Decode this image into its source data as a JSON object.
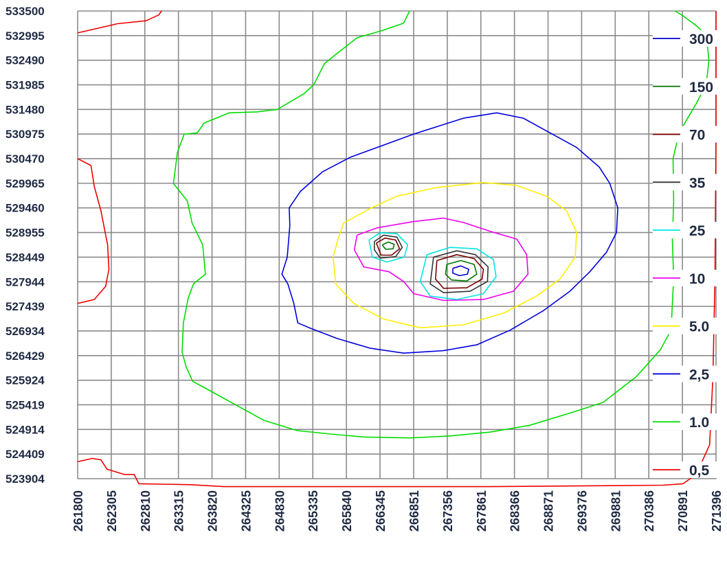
{
  "chart_data": {
    "type": "contour",
    "title": "",
    "xlabel": "",
    "ylabel": "",
    "grid": true,
    "legend_placement": "right-inside",
    "xlim": [
      261800,
      271396
    ],
    "ylim": [
      523904,
      533500
    ],
    "x_ticks": [
      "261800",
      "262305",
      "262810",
      "263315",
      "263820",
      "264325",
      "264830",
      "265335",
      "265840",
      "266345",
      "266851",
      "267356",
      "267861",
      "268366",
      "268871",
      "269376",
      "269881",
      "270386",
      "270891",
      "271396"
    ],
    "y_ticks": [
      "533500",
      "532995",
      "532490",
      "531985",
      "531480",
      "530975",
      "530470",
      "529965",
      "529460",
      "528955",
      "528449",
      "527944",
      "527439",
      "526934",
      "526429",
      "525924",
      "525419",
      "524914",
      "524409",
      "523904"
    ],
    "levels": [
      {
        "label": "300",
        "color": "#0000cc"
      },
      {
        "label": "150",
        "color": "#007700"
      },
      {
        "label": "70",
        "color": "#770000"
      },
      {
        "label": "35",
        "color": "#333333"
      },
      {
        "label": "25",
        "color": "#00e5e5"
      },
      {
        "label": "10",
        "color": "#ee00ee"
      },
      {
        "label": "5.0",
        "color": "#ffee00"
      },
      {
        "label": "2,5",
        "color": "#0000dd"
      },
      {
        "label": "1.0",
        "color": "#00dd00"
      },
      {
        "label": "0,5",
        "color": "#ee0000"
      }
    ],
    "contours": [
      {
        "level": "0,5",
        "points": [
          [
            261800,
            533050
          ],
          [
            262400,
            533240
          ],
          [
            262830,
            533300
          ],
          [
            263020,
            533420
          ],
          [
            263060,
            533500
          ]
        ]
      },
      {
        "level": "0,5",
        "points": [
          [
            261800,
            530470
          ],
          [
            262000,
            530330
          ],
          [
            262050,
            529900
          ],
          [
            262150,
            529400
          ],
          [
            262250,
            528700
          ],
          [
            262270,
            528200
          ],
          [
            262220,
            527850
          ],
          [
            262050,
            527580
          ],
          [
            261800,
            527500
          ]
        ]
      },
      {
        "level": "0,5",
        "points": [
          [
            261800,
            524250
          ],
          [
            262020,
            524320
          ],
          [
            262150,
            524290
          ],
          [
            262240,
            524100
          ],
          [
            262500,
            523990
          ],
          [
            262650,
            523990
          ],
          [
            262720,
            523800
          ],
          [
            263500,
            523780
          ],
          [
            264000,
            523740
          ],
          [
            268000,
            523740
          ],
          [
            269800,
            523760
          ],
          [
            270600,
            523770
          ],
          [
            270900,
            523800
          ],
          [
            271100,
            523990
          ],
          [
            271300,
            524600
          ],
          [
            271350,
            526000
          ],
          [
            271380,
            528000
          ],
          [
            271396,
            531000
          ],
          [
            271396,
            533500
          ]
        ]
      },
      {
        "level": "1.0",
        "points": [
          [
            266790,
            533500
          ],
          [
            266700,
            533250
          ],
          [
            266380,
            533100
          ],
          [
            266000,
            532950
          ],
          [
            265720,
            532650
          ],
          [
            265510,
            532420
          ],
          [
            265350,
            531990
          ],
          [
            265200,
            531800
          ],
          [
            264800,
            531480
          ],
          [
            264500,
            531430
          ],
          [
            264080,
            531410
          ],
          [
            263700,
            531200
          ],
          [
            263600,
            531000
          ],
          [
            263400,
            530970
          ],
          [
            263300,
            530600
          ],
          [
            263240,
            529960
          ],
          [
            263450,
            529600
          ],
          [
            263520,
            529150
          ],
          [
            263680,
            528700
          ],
          [
            263720,
            528100
          ],
          [
            263540,
            527900
          ],
          [
            263460,
            527600
          ],
          [
            263390,
            527100
          ],
          [
            263370,
            526500
          ],
          [
            263430,
            526200
          ],
          [
            263530,
            525900
          ],
          [
            263800,
            525700
          ],
          [
            264200,
            525400
          ],
          [
            264600,
            525100
          ],
          [
            265100,
            524890
          ],
          [
            265600,
            524820
          ],
          [
            266100,
            524760
          ],
          [
            266800,
            524740
          ],
          [
            267400,
            524780
          ],
          [
            268000,
            524860
          ],
          [
            268600,
            525000
          ],
          [
            269200,
            525250
          ],
          [
            269700,
            525470
          ],
          [
            270200,
            526000
          ],
          [
            270560,
            526550
          ],
          [
            270720,
            526950
          ],
          [
            270740,
            527500
          ],
          [
            270760,
            528000
          ],
          [
            270740,
            528800
          ],
          [
            270760,
            529600
          ],
          [
            270750,
            530470
          ],
          [
            270840,
            531000
          ],
          [
            271100,
            531600
          ],
          [
            271250,
            532000
          ],
          [
            271290,
            532490
          ],
          [
            271250,
            533000
          ],
          [
            271100,
            533200
          ],
          [
            270900,
            533400
          ],
          [
            270780,
            533500
          ]
        ]
      },
      {
        "level": "2,5",
        "points": [
          [
            266851,
            530975
          ],
          [
            267600,
            531300
          ],
          [
            268100,
            531410
          ],
          [
            268500,
            531300
          ],
          [
            268900,
            531000
          ],
          [
            269300,
            530700
          ],
          [
            269640,
            530300
          ],
          [
            269800,
            529960
          ],
          [
            269920,
            529460
          ],
          [
            269900,
            528955
          ],
          [
            269750,
            528550
          ],
          [
            269500,
            528150
          ],
          [
            269200,
            527750
          ],
          [
            268800,
            527350
          ],
          [
            268300,
            526950
          ],
          [
            267800,
            526650
          ],
          [
            267300,
            526530
          ],
          [
            266700,
            526480
          ],
          [
            266200,
            526580
          ],
          [
            265700,
            526780
          ],
          [
            265300,
            526990
          ],
          [
            265110,
            527100
          ],
          [
            265050,
            527500
          ],
          [
            264960,
            527900
          ],
          [
            264870,
            528100
          ],
          [
            264950,
            528449
          ],
          [
            264990,
            529100
          ],
          [
            264980,
            529460
          ],
          [
            265150,
            529800
          ],
          [
            265480,
            530200
          ],
          [
            265900,
            530500
          ],
          [
            266300,
            530700
          ],
          [
            266851,
            530975
          ]
        ]
      },
      {
        "level": "5.0",
        "points": [
          [
            265800,
            529150
          ],
          [
            266200,
            529450
          ],
          [
            266600,
            529700
          ],
          [
            267200,
            529880
          ],
          [
            267900,
            529980
          ],
          [
            268400,
            529920
          ],
          [
            268850,
            529700
          ],
          [
            269150,
            529400
          ],
          [
            269300,
            528955
          ],
          [
            269280,
            528449
          ],
          [
            269050,
            528000
          ],
          [
            268700,
            527650
          ],
          [
            268200,
            527300
          ],
          [
            267600,
            527060
          ],
          [
            266950,
            527000
          ],
          [
            266400,
            527180
          ],
          [
            265950,
            527500
          ],
          [
            265680,
            527900
          ],
          [
            265640,
            528449
          ],
          [
            265710,
            528800
          ],
          [
            265800,
            529150
          ]
        ]
      },
      {
        "level": "10",
        "points": [
          [
            266000,
            528900
          ],
          [
            266300,
            529050
          ],
          [
            266851,
            529180
          ],
          [
            267300,
            529250
          ],
          [
            267600,
            529160
          ],
          [
            268000,
            528980
          ],
          [
            268400,
            528820
          ],
          [
            268550,
            528500
          ],
          [
            268570,
            528100
          ],
          [
            268350,
            527750
          ],
          [
            267900,
            527580
          ],
          [
            267300,
            527560
          ],
          [
            266851,
            527700
          ],
          [
            266700,
            527950
          ],
          [
            266480,
            528150
          ],
          [
            266100,
            528250
          ],
          [
            265960,
            528600
          ],
          [
            266000,
            528900
          ]
        ]
      },
      {
        "level": "25",
        "points": [
          [
            266180,
            528800
          ],
          [
            266345,
            528950
          ],
          [
            266600,
            528930
          ],
          [
            266760,
            528700
          ],
          [
            266710,
            528450
          ],
          [
            266450,
            528350
          ],
          [
            266230,
            528449
          ],
          [
            266180,
            528800
          ]
        ]
      },
      {
        "level": "25",
        "points": [
          [
            267050,
            528500
          ],
          [
            267400,
            528650
          ],
          [
            267800,
            528620
          ],
          [
            268050,
            528400
          ],
          [
            268090,
            528050
          ],
          [
            267900,
            527700
          ],
          [
            267500,
            527580
          ],
          [
            267100,
            527650
          ],
          [
            266950,
            527950
          ],
          [
            267050,
            528500
          ]
        ]
      },
      {
        "level": "35",
        "points": [
          [
            266260,
            528770
          ],
          [
            266400,
            528900
          ],
          [
            266600,
            528860
          ],
          [
            266680,
            528650
          ],
          [
            266580,
            528460
          ],
          [
            266350,
            528430
          ],
          [
            266260,
            528600
          ],
          [
            266260,
            528770
          ]
        ]
      },
      {
        "level": "35",
        "points": [
          [
            267150,
            528450
          ],
          [
            267500,
            528580
          ],
          [
            267780,
            528500
          ],
          [
            267970,
            528250
          ],
          [
            267960,
            527950
          ],
          [
            267700,
            527750
          ],
          [
            267300,
            527720
          ],
          [
            267100,
            527900
          ],
          [
            267150,
            528450
          ]
        ]
      },
      {
        "level": "70",
        "points": [
          [
            266290,
            528740
          ],
          [
            266420,
            528840
          ],
          [
            266580,
            528800
          ],
          [
            266640,
            528620
          ],
          [
            266520,
            528490
          ],
          [
            266360,
            528490
          ],
          [
            266290,
            528740
          ]
        ]
      },
      {
        "level": "70",
        "points": [
          [
            267200,
            528380
          ],
          [
            267500,
            528500
          ],
          [
            267760,
            528420
          ],
          [
            267900,
            528200
          ],
          [
            267880,
            528000
          ],
          [
            267650,
            527820
          ],
          [
            267300,
            527810
          ],
          [
            267180,
            528000
          ],
          [
            267200,
            528380
          ]
        ]
      },
      {
        "level": "150",
        "points": [
          [
            266380,
            528700
          ],
          [
            266470,
            528760
          ],
          [
            266560,
            528710
          ],
          [
            266540,
            528620
          ],
          [
            266430,
            528610
          ],
          [
            266380,
            528700
          ]
        ]
      },
      {
        "level": "150",
        "points": [
          [
            267350,
            528300
          ],
          [
            267560,
            528380
          ],
          [
            267760,
            528300
          ],
          [
            267800,
            528100
          ],
          [
            267650,
            527960
          ],
          [
            267420,
            527980
          ],
          [
            267330,
            528100
          ],
          [
            267350,
            528300
          ]
        ]
      },
      {
        "level": "300",
        "points": [
          [
            267440,
            528220
          ],
          [
            267560,
            528270
          ],
          [
            267680,
            528200
          ],
          [
            267660,
            528100
          ],
          [
            267540,
            528070
          ],
          [
            267440,
            528120
          ],
          [
            267440,
            528220
          ]
        ]
      }
    ]
  }
}
